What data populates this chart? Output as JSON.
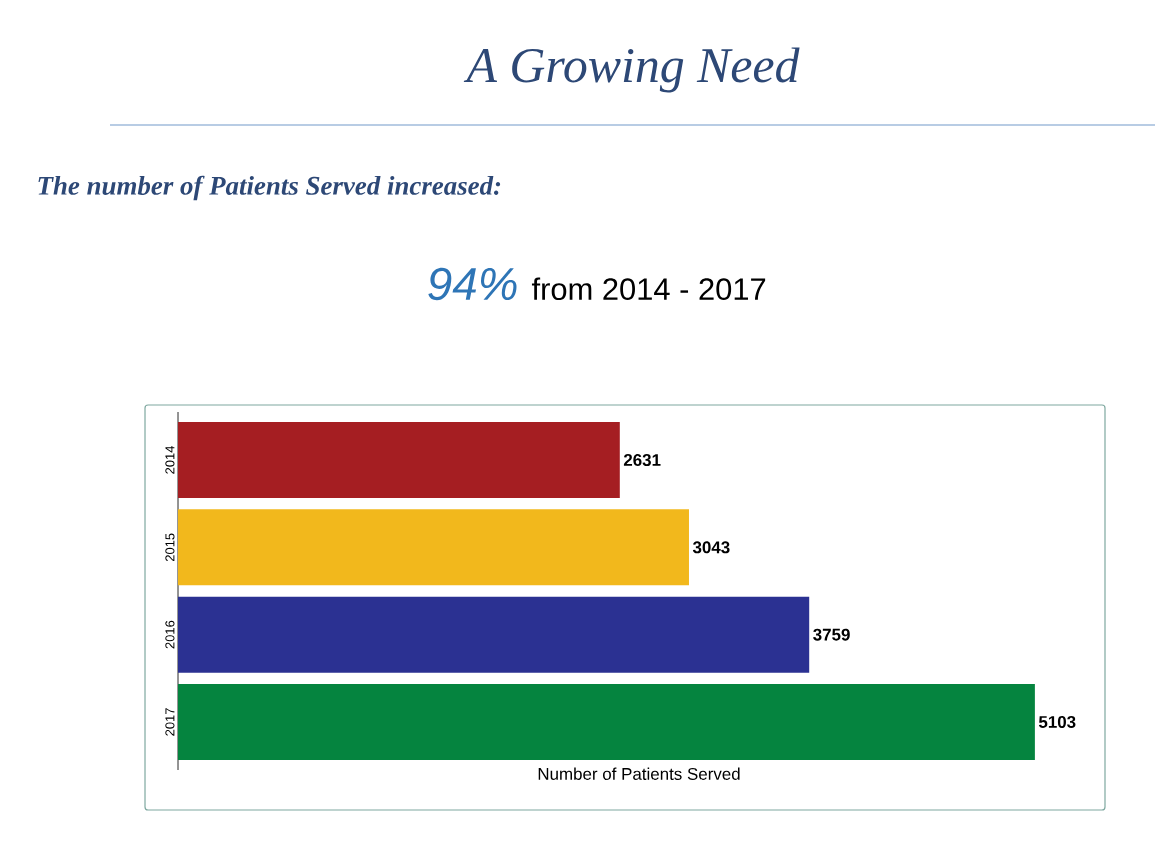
{
  "chart_data": {
    "type": "bar",
    "orientation": "horizontal",
    "title": "A Growing Need",
    "subtitle": "The number of Patients Served increased:",
    "annotations": [
      "94%",
      "from 2014 - 2017"
    ],
    "xlabel": "Number of Patients Served",
    "categories": [
      "2014",
      "2015",
      "2016",
      "2017"
    ],
    "values": [
      2631,
      3043,
      3759,
      5103
    ],
    "colors": [
      "#a51e22",
      "#f2b81c",
      "#2b3192",
      "#05843f"
    ],
    "data_labels": true
  }
}
